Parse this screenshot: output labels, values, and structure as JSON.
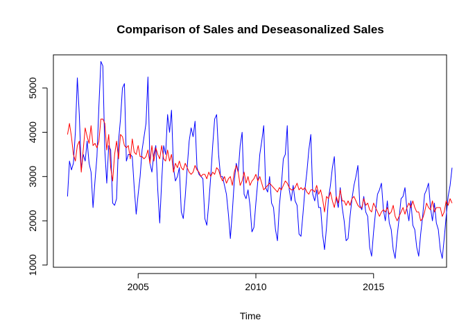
{
  "chart_data": {
    "type": "line",
    "title": "Comparison of Sales and Deseasonalized Sales",
    "xlabel": "Time",
    "ylabel": "",
    "xlim": [
      2001.4,
      2018.1
    ],
    "ylim": [
      950,
      5750
    ],
    "x_ticks": [
      2005,
      2010,
      2015
    ],
    "y_ticks": [
      1000,
      2000,
      3000,
      4000,
      5000
    ],
    "x_tick_labels": [
      "2005",
      "2010",
      "2015"
    ],
    "y_tick_labels": [
      "1000",
      "2000",
      "3000",
      "4000",
      "5000"
    ],
    "grid": false,
    "legend": "none",
    "x_start": 2002.0,
    "x_step": 0.0833333,
    "series": [
      {
        "color": "#0000ff",
        "values": [
          2550,
          3350,
          3150,
          3300,
          4000,
          5230,
          4400,
          3150,
          3500,
          3350,
          3800,
          3300,
          3100,
          2300,
          2900,
          3450,
          4600,
          5600,
          5500,
          3600,
          2850,
          3700,
          3600,
          2400,
          2350,
          2500,
          3800,
          4300,
          5000,
          5100,
          3350,
          3500,
          3500,
          3450,
          2750,
          2150,
          2600,
          3000,
          3600,
          3900,
          4200,
          5250,
          3300,
          3100,
          3500,
          3700,
          2700,
          1950,
          2900,
          3700,
          3500,
          4400,
          4000,
          4500,
          3200,
          2900,
          3000,
          3200,
          2200,
          2050,
          2550,
          3200,
          3800,
          4100,
          3900,
          4250,
          3200,
          3050,
          3000,
          2950,
          2050,
          1900,
          2400,
          3000,
          3700,
          4300,
          4400,
          3500,
          3000,
          3000,
          2800,
          2600,
          2150,
          1600,
          2200,
          2900,
          3300,
          3100,
          3700,
          4000,
          2600,
          2500,
          2700,
          2350,
          1750,
          1850,
          2400,
          2900,
          3500,
          3800,
          4150,
          2750,
          2650,
          3000,
          2400,
          2300,
          1800,
          1550,
          2350,
          2800,
          3400,
          3500,
          4150,
          2700,
          2450,
          2800,
          2450,
          2350,
          1700,
          1650,
          2150,
          2700,
          3100,
          3600,
          3950,
          2600,
          2450,
          2700,
          2300,
          2300,
          1700,
          1350,
          1850,
          2500,
          2800,
          3200,
          3450,
          2500,
          2300,
          2750,
          2300,
          2000,
          1550,
          1600,
          2100,
          2500,
          2800,
          3000,
          3250,
          2350,
          2250,
          2550,
          2200,
          2100,
          1400,
          1200,
          1750,
          2200,
          2600,
          2700,
          2850,
          2250,
          2000,
          2450,
          1950,
          1800,
          1350,
          1150,
          1650,
          2050,
          2500,
          2550,
          2750,
          2250,
          2000,
          2450,
          1900,
          1800,
          1400,
          1200,
          1700,
          2100,
          2600,
          2700,
          2850,
          2300,
          2000,
          2400,
          1950,
          1800,
          1350,
          1150,
          1600,
          2100,
          2550,
          2800,
          3200
        ]
      },
      {
        "color": "#ff0000",
        "values": [
          3950,
          4200,
          3900,
          3500,
          3350,
          3700,
          3800,
          3100,
          3600,
          4100,
          3900,
          3750,
          4150,
          3700,
          3750,
          3650,
          3800,
          4300,
          4300,
          4200,
          3600,
          3950,
          3200,
          2900,
          3500,
          3800,
          3400,
          3950,
          3900,
          3700,
          3650,
          3700,
          3400,
          3850,
          3550,
          3500,
          3700,
          3450,
          3450,
          3400,
          3450,
          3600,
          3300,
          3700,
          3350,
          3650,
          3500,
          3400,
          3700,
          3400,
          3350,
          3600,
          3350,
          3500,
          3100,
          3300,
          3200,
          3350,
          3200,
          3150,
          3300,
          3200,
          3100,
          3050,
          3100,
          3250,
          3150,
          3100,
          3000,
          3050,
          3050,
          2950,
          3100,
          3000,
          3100,
          3050,
          3200,
          3150,
          3000,
          2900,
          3000,
          2850,
          2950,
          3000,
          2800,
          3100,
          3250,
          3100,
          2800,
          2900,
          3100,
          2850,
          3000,
          2800,
          2900,
          2950,
          3050,
          2900,
          3000,
          2850,
          2700,
          2750,
          2800,
          2850,
          2800,
          2750,
          2700,
          2650,
          2750,
          2700,
          2800,
          2900,
          2850,
          2750,
          2700,
          2700,
          2750,
          2850,
          2700,
          2750,
          2700,
          2750,
          2650,
          2600,
          2700,
          2700,
          2650,
          2800,
          2600,
          2700,
          2500,
          2200,
          2550,
          2500,
          2650,
          2450,
          2300,
          2550,
          2400,
          2700,
          2450,
          2450,
          2350,
          2450,
          2350,
          2500,
          2550,
          2450,
          2350,
          2300,
          2300,
          2500,
          2350,
          2400,
          2250,
          2200,
          2400,
          2300,
          2200,
          2100,
          2200,
          2250,
          2200,
          2300,
          2150,
          2200,
          2350,
          2100,
          2000,
          2100,
          2200,
          2300,
          2150,
          2300,
          2400,
          2300,
          2450,
          2300,
          2200,
          2200,
          2000,
          2050,
          2200,
          2400,
          2300,
          2250,
          2450,
          2200,
          2300,
          2300,
          2300,
          2100,
          2200,
          2450,
          2350,
          2500,
          2400
        ]
      }
    ]
  }
}
